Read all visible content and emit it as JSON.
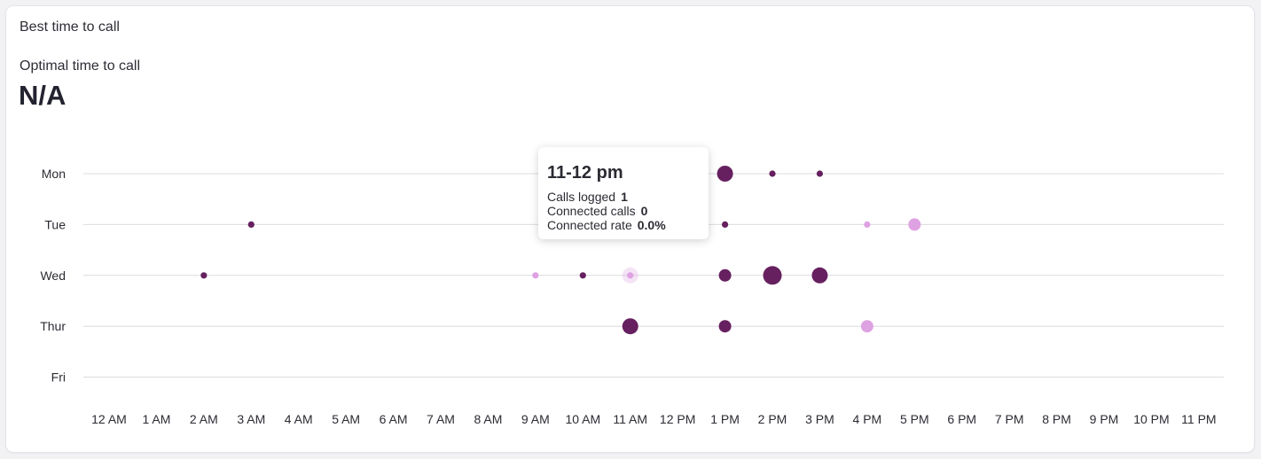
{
  "card": {
    "title": "Best time to call",
    "metric_label": "Optimal time to call",
    "metric_value": "N/A"
  },
  "tooltip": {
    "title": "11-12 pm",
    "rows": [
      {
        "label": "Calls logged",
        "value": "1"
      },
      {
        "label": "Connected calls",
        "value": "0"
      },
      {
        "label": "Connected rate",
        "value": "0.0%"
      }
    ]
  },
  "colors": {
    "dark": "#66205f",
    "light": "#dea2e2",
    "grid": "#dcdce0"
  },
  "chart_data": {
    "type": "scatter",
    "title": "Best time to call",
    "x_ticks": [
      "12 AM",
      "1 AM",
      "2 AM",
      "3 AM",
      "4 AM",
      "5 AM",
      "6 AM",
      "7 AM",
      "8 AM",
      "9 AM",
      "10 AM",
      "11 AM",
      "12 PM",
      "1 PM",
      "2 PM",
      "3 PM",
      "4 PM",
      "5 PM",
      "6 PM",
      "7 PM",
      "8 PM",
      "9 PM",
      "10 PM",
      "11 PM"
    ],
    "y_categories": [
      "Mon",
      "Tue",
      "Wed",
      "Thur",
      "Fri"
    ],
    "xlim": [
      0,
      23
    ],
    "grid": true,
    "points": [
      {
        "day": "Mon",
        "hour": 11,
        "calls": 1,
        "tone": "light",
        "level": 0.2
      },
      {
        "day": "Mon",
        "hour": 13,
        "calls": 4,
        "tone": "dark"
      },
      {
        "day": "Mon",
        "hour": 14,
        "calls": 1,
        "tone": "dark"
      },
      {
        "day": "Mon",
        "hour": 15,
        "calls": 1,
        "tone": "dark"
      },
      {
        "day": "Tue",
        "hour": 3,
        "calls": 1,
        "tone": "dark"
      },
      {
        "day": "Tue",
        "hour": 13,
        "calls": 1,
        "tone": "dark"
      },
      {
        "day": "Tue",
        "hour": 16,
        "calls": 1,
        "tone": "light"
      },
      {
        "day": "Tue",
        "hour": 17,
        "calls": 3,
        "tone": "light"
      },
      {
        "day": "Wed",
        "hour": 2,
        "calls": 1,
        "tone": "dark"
      },
      {
        "day": "Wed",
        "hour": 9,
        "calls": 1,
        "tone": "light"
      },
      {
        "day": "Wed",
        "hour": 10,
        "calls": 1,
        "tone": "dark"
      },
      {
        "day": "Wed",
        "hour": 11,
        "calls": 1,
        "tone": "light",
        "highlighted": true
      },
      {
        "day": "Wed",
        "hour": 13,
        "calls": 3,
        "tone": "dark"
      },
      {
        "day": "Wed",
        "hour": 14,
        "calls": 5,
        "tone": "dark"
      },
      {
        "day": "Wed",
        "hour": 15,
        "calls": 4,
        "tone": "dark"
      },
      {
        "day": "Thur",
        "hour": 11,
        "calls": 4,
        "tone": "dark"
      },
      {
        "day": "Thur",
        "hour": 13,
        "calls": 3,
        "tone": "dark"
      },
      {
        "day": "Thur",
        "hour": 16,
        "calls": 3,
        "tone": "light"
      }
    ]
  }
}
